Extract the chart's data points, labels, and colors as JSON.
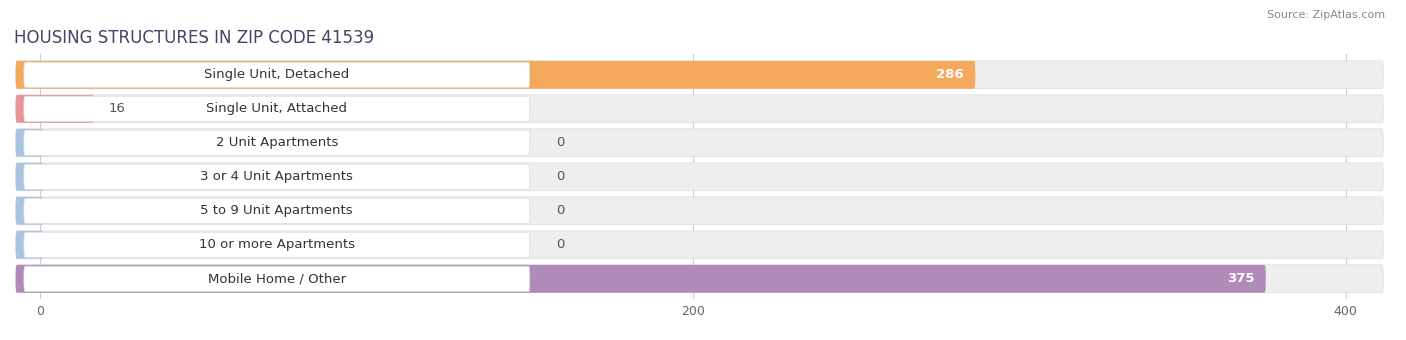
{
  "title": "HOUSING STRUCTURES IN ZIP CODE 41539",
  "source": "Source: ZipAtlas.com",
  "categories": [
    "Single Unit, Detached",
    "Single Unit, Attached",
    "2 Unit Apartments",
    "3 or 4 Unit Apartments",
    "5 to 9 Unit Apartments",
    "10 or more Apartments",
    "Mobile Home / Other"
  ],
  "values": [
    286,
    16,
    0,
    0,
    0,
    0,
    375
  ],
  "bar_colors": [
    "#f5a95d",
    "#e8959a",
    "#a8c4e0",
    "#a8c4e0",
    "#a8c4e0",
    "#a8c4e0",
    "#b08ab8"
  ],
  "xlim_min": 0,
  "xlim_max": 400,
  "xticks": [
    0,
    200,
    400
  ],
  "label_fontsize": 9.5,
  "title_fontsize": 12,
  "value_color_inside": "#ffffff",
  "value_color_outside": "#555555",
  "background_color": "#ffffff",
  "row_bg_color": "#eeeeee",
  "label_box_color": "#ffffff"
}
